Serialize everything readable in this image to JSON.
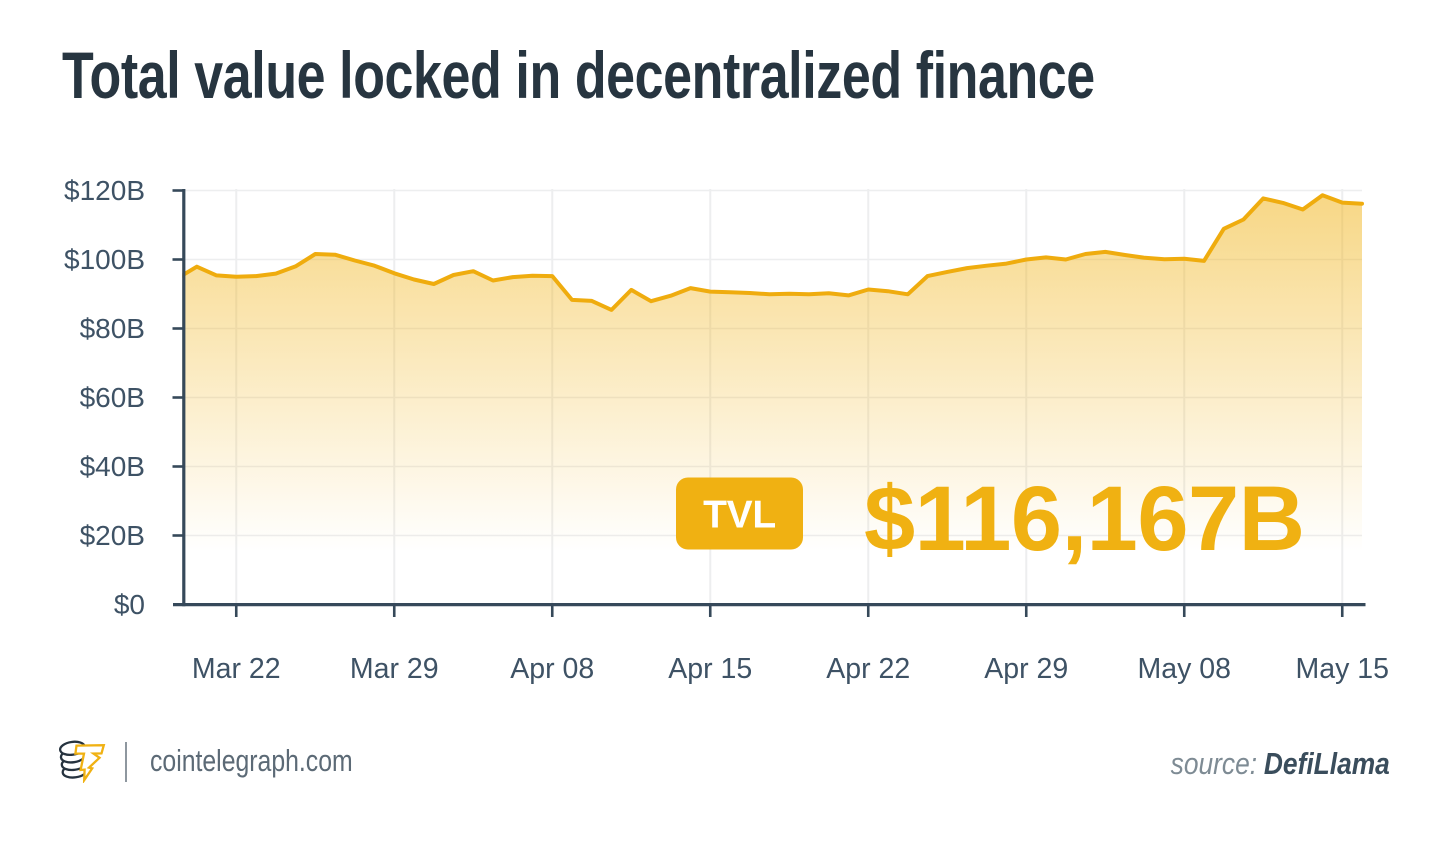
{
  "title": "Total value locked in decentralized finance",
  "badge": {
    "label": "TVL"
  },
  "highlight_value": "$116,167B",
  "footer": {
    "brand": "cointelegraph.com",
    "source_label": "source:",
    "source_value": "DefiLlama"
  },
  "colors": {
    "accent_yellow": "#F0B112",
    "line_yellow": "#EFAC0E",
    "title_text": "#273540",
    "axis": "#36495A",
    "tick_label": "#3E5265",
    "grid": "#EDEEEF",
    "badge_text": "#FFFFFF",
    "footer_text": "#5C6A76",
    "source_label_text": "#7E8B94",
    "source_value_text": "#3A4D5C"
  },
  "chart_data": {
    "type": "area",
    "title": "Total value locked in decentralized finance",
    "unit": "USD billions",
    "ylim": [
      0,
      120
    ],
    "y_ticks": [
      0,
      20,
      40,
      60,
      80,
      100,
      120
    ],
    "y_tick_labels": [
      "$0",
      "$20B",
      "$40B",
      "$60B",
      "$80B",
      "$100B",
      "$120B"
    ],
    "x_tick_labels": [
      "Mar 22",
      "Mar 29",
      "Apr 08",
      "Apr 15",
      "Apr 22",
      "Apr 29",
      "May 08",
      "May 15"
    ],
    "x_tick_indices": [
      3,
      11,
      19,
      27,
      35,
      43,
      51,
      59
    ],
    "grid": true,
    "legend_position": "none",
    "annotation": {
      "label": "TVL",
      "value": "$116,167B"
    },
    "values": [
      94.5,
      97.9,
      95.4,
      95.0,
      95.2,
      95.9,
      98.0,
      101.6,
      101.4,
      99.7,
      98.2,
      96.0,
      94.2,
      92.9,
      95.5,
      96.6,
      93.9,
      94.9,
      95.3,
      95.2,
      88.3,
      88.0,
      85.4,
      91.2,
      87.9,
      89.5,
      91.7,
      90.7,
      90.5,
      90.3,
      89.9,
      90.1,
      89.9,
      90.2,
      89.6,
      91.3,
      90.8,
      89.9,
      95.2,
      96.4,
      97.5,
      98.2,
      98.8,
      100.0,
      100.6,
      100.0,
      101.6,
      102.2,
      101.3,
      100.5,
      100.1,
      100.2,
      99.6,
      108.9,
      111.6,
      117.7,
      116.4,
      114.5,
      118.6,
      116.5,
      116.167
    ]
  }
}
